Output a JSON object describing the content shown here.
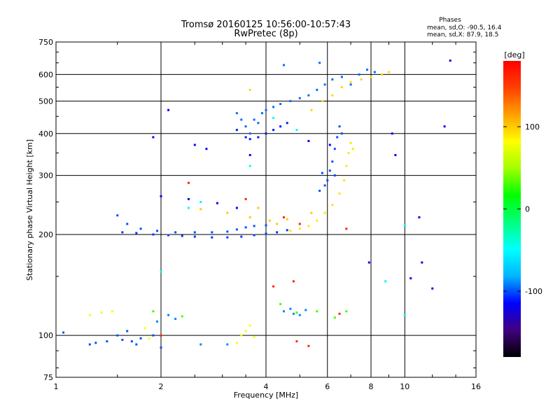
{
  "chart_data": {
    "type": "scatter",
    "title": "Tromsø 20160125 10:56:00-10:57:43",
    "subtitle": "RwPretec (8p)",
    "xlabel": "Frequency [MHz]",
    "ylabel": "Stationary phase Virtual Height [km]",
    "x_scale": "log",
    "y_scale": "log",
    "xlim": [
      1,
      16
    ],
    "ylim": [
      75,
      750
    ],
    "x_ticks": [
      1,
      2,
      4,
      6,
      8,
      10,
      16
    ],
    "y_ticks": [
      75,
      100,
      200,
      300,
      400,
      500,
      600,
      750
    ],
    "grid": true,
    "stats": {
      "heading": "Phases",
      "line_o": "mean, sd,O: -90.5, 16.4",
      "line_x": "mean, sd,X:  87.9, 18.5"
    },
    "colorbar": {
      "label": "[deg]",
      "ticks": [
        100,
        0,
        -100
      ],
      "range": [
        -180,
        180
      ],
      "colors": [
        "#000000",
        "#40007f",
        "#0000ff",
        "#00b4ff",
        "#00ffff",
        "#00ff80",
        "#00ff00",
        "#a0ff00",
        "#ffff00",
        "#ffa000",
        "#ff4000",
        "#ff0000"
      ]
    },
    "series": [
      {
        "phase_deg": -105,
        "points": [
          [
            1.55,
            203
          ],
          [
            1.7,
            202
          ],
          [
            1.9,
            200
          ],
          [
            2.1,
            199
          ],
          [
            2.3,
            198
          ],
          [
            2.5,
            197
          ],
          [
            2.8,
            196
          ],
          [
            3.1,
            196
          ],
          [
            3.4,
            197
          ],
          [
            3.7,
            199
          ],
          [
            4.0,
            201
          ],
          [
            4.3,
            203
          ],
          [
            4.6,
            206
          ]
        ]
      },
      {
        "phase_deg": -100,
        "points": [
          [
            1.5,
            228
          ],
          [
            1.6,
            215
          ],
          [
            1.75,
            208
          ],
          [
            1.95,
            205
          ],
          [
            2.2,
            203
          ],
          [
            2.5,
            203
          ],
          [
            2.8,
            203
          ],
          [
            3.1,
            204
          ],
          [
            3.3,
            207
          ],
          [
            3.5,
            210
          ],
          [
            3.7,
            212
          ],
          [
            4.0,
            213
          ]
        ]
      },
      {
        "phase_deg": 90,
        "points": [
          [
            4.7,
            205
          ],
          [
            5.0,
            208
          ],
          [
            5.3,
            212
          ],
          [
            5.6,
            220
          ],
          [
            5.9,
            232
          ],
          [
            6.2,
            245
          ],
          [
            6.5,
            265
          ],
          [
            6.7,
            290
          ],
          [
            6.8,
            320
          ],
          [
            6.9,
            350
          ],
          [
            7.0,
            375
          ],
          [
            7.1,
            360
          ]
        ]
      },
      {
        "phase_deg": -100,
        "points": [
          [
            5.8,
            305
          ],
          [
            5.9,
            280
          ],
          [
            6.0,
            290
          ],
          [
            6.1,
            310
          ],
          [
            6.2,
            330
          ],
          [
            6.3,
            360
          ],
          [
            6.4,
            390
          ],
          [
            6.5,
            420
          ],
          [
            6.3,
            300
          ],
          [
            6.6,
            400
          ],
          [
            5.7,
            270
          ]
        ]
      },
      {
        "phase_deg": -95,
        "points": [
          [
            3.3,
            460
          ],
          [
            3.4,
            440
          ],
          [
            3.5,
            420
          ],
          [
            3.6,
            400
          ],
          [
            3.7,
            440
          ],
          [
            3.8,
            430
          ],
          [
            3.9,
            460
          ],
          [
            4.0,
            470
          ],
          [
            4.2,
            480
          ],
          [
            4.4,
            490
          ],
          [
            4.7,
            500
          ],
          [
            5.0,
            510
          ],
          [
            5.3,
            520
          ],
          [
            5.6,
            540
          ],
          [
            5.9,
            560
          ],
          [
            6.2,
            580
          ],
          [
            6.6,
            590
          ],
          [
            7.0,
            560
          ],
          [
            7.4,
            600
          ],
          [
            7.8,
            620
          ],
          [
            8.2,
            610
          ],
          [
            4.5,
            640
          ],
          [
            5.7,
            650
          ]
        ]
      },
      {
        "phase_deg": -110,
        "points": [
          [
            3.3,
            410
          ],
          [
            3.5,
            390
          ],
          [
            3.6,
            385
          ],
          [
            3.8,
            390
          ],
          [
            4.0,
            400
          ],
          [
            4.2,
            410
          ],
          [
            4.4,
            420
          ],
          [
            4.6,
            430
          ]
        ]
      },
      {
        "phase_deg": 95,
        "points": [
          [
            5.4,
            470
          ],
          [
            5.8,
            500
          ],
          [
            6.2,
            520
          ],
          [
            6.6,
            550
          ],
          [
            7.0,
            570
          ],
          [
            7.5,
            580
          ],
          [
            8.0,
            590
          ],
          [
            8.6,
            600
          ],
          [
            9.0,
            610
          ],
          [
            3.6,
            540
          ]
        ]
      },
      {
        "phase_deg": -100,
        "points": [
          [
            1.05,
            102
          ],
          [
            1.25,
            94
          ],
          [
            1.3,
            95
          ],
          [
            1.4,
            96
          ],
          [
            1.5,
            100
          ],
          [
            1.55,
            97
          ],
          [
            1.6,
            103
          ],
          [
            1.65,
            96
          ],
          [
            1.7,
            94
          ],
          [
            1.75,
            98
          ],
          [
            1.9,
            100
          ],
          [
            2.0,
            92
          ]
        ]
      },
      {
        "phase_deg": 80,
        "points": [
          [
            1.25,
            115
          ],
          [
            1.35,
            117
          ],
          [
            1.45,
            118
          ],
          [
            1.8,
            105
          ],
          [
            1.85,
            98
          ],
          [
            3.5,
            103
          ],
          [
            3.6,
            107
          ],
          [
            3.7,
            99
          ],
          [
            3.3,
            95
          ],
          [
            3.4,
            100
          ]
        ]
      },
      {
        "phase_deg": -90,
        "points": [
          [
            4.5,
            118
          ],
          [
            4.7,
            120
          ],
          [
            4.8,
            116
          ],
          [
            5.0,
            115
          ],
          [
            5.2,
            119
          ],
          [
            2.1,
            115
          ],
          [
            2.2,
            112
          ],
          [
            1.95,
            110
          ],
          [
            3.1,
            94
          ],
          [
            2.6,
            94
          ]
        ]
      },
      {
        "phase_deg": 30,
        "points": [
          [
            4.4,
            124
          ],
          [
            4.9,
            117
          ],
          [
            5.6,
            118
          ],
          [
            6.3,
            113
          ],
          [
            6.8,
            118
          ],
          [
            2.3,
            114
          ],
          [
            1.9,
            118
          ]
        ]
      },
      {
        "phase_deg": 160,
        "points": [
          [
            2.0,
            100
          ],
          [
            4.9,
            96
          ],
          [
            5.3,
            93
          ],
          [
            6.5,
            116
          ],
          [
            4.8,
            145
          ],
          [
            4.2,
            140
          ],
          [
            2.4,
            285
          ],
          [
            3.5,
            255
          ],
          [
            6.8,
            208
          ],
          [
            4.5,
            225
          ],
          [
            5.0,
            215
          ]
        ]
      },
      {
        "phase_deg": -115,
        "points": [
          [
            1.9,
            390
          ],
          [
            2.1,
            470
          ],
          [
            2.5,
            370
          ],
          [
            2.7,
            360
          ],
          [
            3.6,
            345
          ],
          [
            2.0,
            260
          ],
          [
            2.4,
            255
          ],
          [
            2.9,
            248
          ],
          [
            3.3,
            240
          ],
          [
            5.3,
            380
          ],
          [
            6.1,
            370
          ],
          [
            9.4,
            345
          ],
          [
            11.0,
            225
          ],
          [
            13.0,
            420
          ],
          [
            13.5,
            660
          ],
          [
            11.2,
            165
          ],
          [
            7.9,
            165
          ],
          [
            12.0,
            138
          ],
          [
            9.2,
            400
          ],
          [
            10.4,
            148
          ]
        ]
      },
      {
        "phase_deg": 100,
        "points": [
          [
            3.6,
            225
          ],
          [
            4.1,
            220
          ],
          [
            4.3,
            215
          ],
          [
            4.6,
            222
          ],
          [
            2.6,
            238
          ],
          [
            3.1,
            232
          ],
          [
            5.4,
            232
          ],
          [
            3.8,
            240
          ]
        ]
      },
      {
        "phase_deg": -45,
        "points": [
          [
            2.4,
            240
          ],
          [
            2.6,
            250
          ],
          [
            2.0,
            155
          ],
          [
            3.6,
            320
          ],
          [
            4.9,
            410
          ],
          [
            8.8,
            145
          ],
          [
            10.0,
            213
          ],
          [
            10.0,
            115
          ],
          [
            4.2,
            445
          ]
        ]
      }
    ]
  }
}
